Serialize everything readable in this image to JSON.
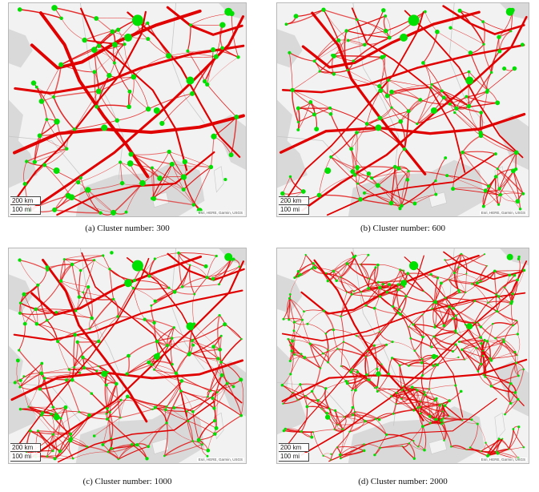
{
  "colors": {
    "land": "#f2f2f2",
    "sea": "#d9d9d9",
    "route": "#e00000",
    "node": "#00e000",
    "border": "#c8c8c8"
  },
  "panels": [
    {
      "id": "a",
      "caption": "(a) Cluster number: 300",
      "clusters": 300,
      "scale_km": "200 km",
      "scale_mi": "100 mi",
      "attribution": "Esri, HERE, Garmin, USGS"
    },
    {
      "id": "b",
      "caption": "(b) Cluster number: 600",
      "clusters": 600,
      "scale_km": "200 km",
      "scale_mi": "100 mi",
      "attribution": "Esri, HERE, Garmin, USGS"
    },
    {
      "id": "c",
      "caption": "(c) Cluster number: 1000",
      "clusters": 1000,
      "scale_km": "200 km",
      "scale_mi": "100 mi",
      "attribution": "Esri, HERE, Garmin, USGS"
    },
    {
      "id": "d",
      "caption": "(d) Cluster number: 2000",
      "clusters": 2000,
      "scale_km": "200 km",
      "scale_mi": "100 mi",
      "attribution": "Esri, HERE, Garmin, USGS"
    }
  ]
}
